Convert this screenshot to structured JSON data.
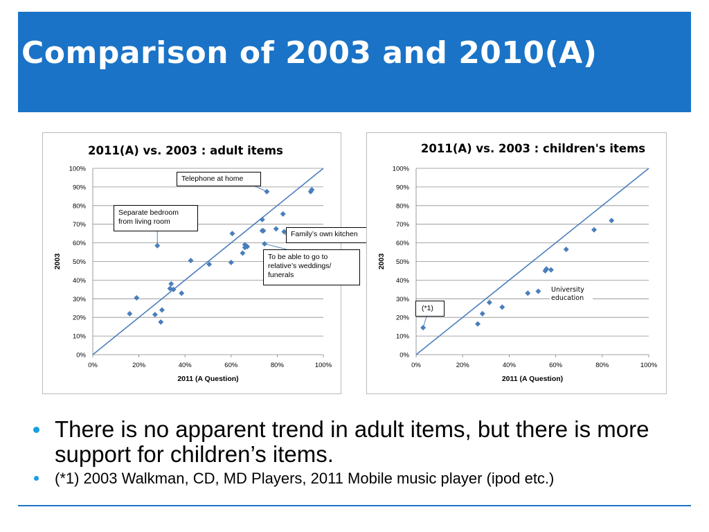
{
  "slide": {
    "title": "Comparison of 2003 and 2010(A)",
    "bullets": [
      "There is no apparent trend in adult items, but there is more support for children’s items.",
      "(*1) 2003 Walkman, CD, MD Players, 2011 Mobile music player (ipod etc.)"
    ]
  },
  "colors": {
    "header": "#1a73c6",
    "marker": "#4a7ebb",
    "line": "#4a7ebb",
    "bullet": "#1a9de0"
  },
  "chart_data": [
    {
      "type": "scatter",
      "title": "2011(A) vs. 2003 : adult items",
      "xlabel": "2011 (A Question)",
      "ylabel": "2003",
      "xlim": [
        0,
        100
      ],
      "ylim": [
        0,
        100
      ],
      "x_ticks": [
        "0%",
        "20%",
        "40%",
        "60%",
        "80%",
        "100%"
      ],
      "y_ticks": [
        "0%",
        "10%",
        "20%",
        "30%",
        "40%",
        "50%",
        "60%",
        "70%",
        "80%",
        "90%",
        "100%"
      ],
      "grid": true,
      "reference_line": [
        [
          0,
          0
        ],
        [
          100,
          100
        ]
      ],
      "points": [
        [
          16,
          22
        ],
        [
          19,
          30.5
        ],
        [
          27,
          21.5
        ],
        [
          29.5,
          17.5
        ],
        [
          30,
          24
        ],
        [
          33.5,
          35.5
        ],
        [
          34,
          38
        ],
        [
          35,
          35
        ],
        [
          38.5,
          33
        ],
        [
          42.5,
          50.5
        ],
        [
          50.5,
          48.5
        ],
        [
          60,
          49.5
        ],
        [
          60.5,
          65
        ],
        [
          65,
          54.5
        ],
        [
          66,
          59
        ],
        [
          66,
          57.5
        ],
        [
          67,
          58
        ],
        [
          73.5,
          72.5
        ],
        [
          73.5,
          66.5
        ],
        [
          74,
          66.5
        ],
        [
          74.5,
          59.5
        ],
        [
          75.5,
          87.5
        ],
        [
          79.5,
          67.5
        ],
        [
          82.5,
          75.5
        ],
        [
          83,
          66
        ],
        [
          94.5,
          87.5
        ],
        [
          95,
          88.5
        ],
        [
          28,
          58.5
        ]
      ],
      "annotations": [
        "Telephone at home",
        "Separate bedroom from living room",
        "Family’s own kitchen",
        "To be able to go to relative’s weddings/ funerals"
      ]
    },
    {
      "type": "scatter",
      "title": "2011(A) vs. 2003 : children's items",
      "xlabel": "2011 (A Question)",
      "ylabel": "2003",
      "xlim": [
        0,
        100
      ],
      "ylim": [
        0,
        100
      ],
      "x_ticks": [
        "0%",
        "20%",
        "40%",
        "60%",
        "80%",
        "100%"
      ],
      "y_ticks": [
        "0%",
        "10%",
        "20%",
        "30%",
        "40%",
        "50%",
        "60%",
        "70%",
        "80%",
        "90%",
        "100%"
      ],
      "grid": true,
      "reference_line": [
        [
          0,
          0
        ],
        [
          100,
          100
        ]
      ],
      "points": [
        [
          3,
          14.5
        ],
        [
          26.5,
          16.5
        ],
        [
          28.5,
          22
        ],
        [
          31.5,
          28
        ],
        [
          37,
          25.5
        ],
        [
          48,
          33
        ],
        [
          52.5,
          34
        ],
        [
          55.5,
          45
        ],
        [
          56,
          46
        ],
        [
          58,
          45.5
        ],
        [
          64.5,
          56.5
        ],
        [
          76.5,
          67
        ],
        [
          84,
          72
        ]
      ],
      "annotations": [
        "University education",
        "(*1)"
      ]
    }
  ]
}
